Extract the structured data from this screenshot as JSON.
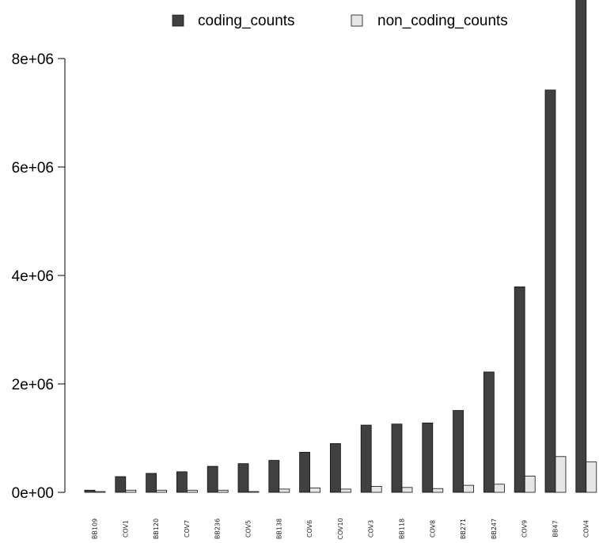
{
  "chart_data": {
    "type": "bar",
    "categories": [
      "BB109",
      "COV1",
      "BB120",
      "COV7",
      "BB236",
      "COV5",
      "BB138",
      "COV6",
      "COV10",
      "COV3",
      "BB118",
      "COV8",
      "BB271",
      "BB247",
      "COV9",
      "BB47",
      "COV4"
    ],
    "series": [
      {
        "name": "coding_counts",
        "color": "#404040",
        "values": [
          40000,
          290000,
          350000,
          380000,
          480000,
          530000,
          590000,
          740000,
          900000,
          1240000,
          1260000,
          1280000,
          1510000,
          2220000,
          3790000,
          7420000,
          9100000
        ]
      },
      {
        "name": "non_coding_counts",
        "color": "#e6e6e6",
        "values": [
          10000,
          40000,
          40000,
          40000,
          40000,
          10000,
          60000,
          80000,
          60000,
          110000,
          90000,
          70000,
          130000,
          150000,
          300000,
          660000,
          560000
        ]
      }
    ],
    "yticks": [
      0,
      2000000,
      4000000,
      6000000,
      8000000
    ],
    "ytick_labels": [
      "0e+00",
      "2e+06",
      "4e+06",
      "6e+06",
      "8e+06"
    ],
    "ylim": [
      0,
      9100000
    ],
    "grid": false,
    "legend_position": "top",
    "title": "",
    "xlabel": "",
    "ylabel": ""
  }
}
